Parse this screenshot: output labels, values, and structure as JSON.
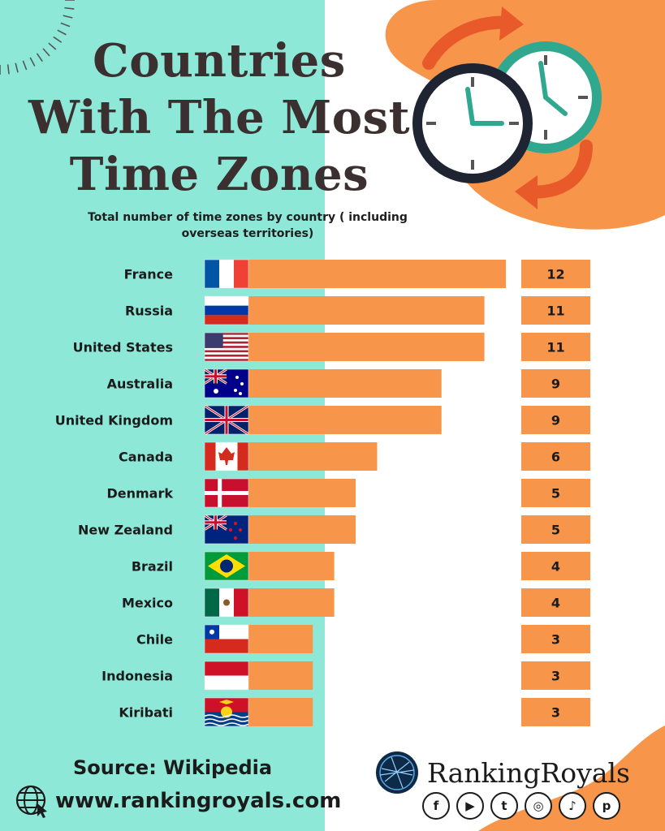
{
  "title_lines": [
    "Countries",
    "With The Most",
    "Time Zones"
  ],
  "subtitle": "Total number of time zones by country ( including overseas territories)",
  "chart_data": {
    "type": "bar",
    "orientation": "horizontal",
    "categories": [
      "France",
      "Russia",
      "United States",
      "Australia",
      "United Kingdom",
      "Canada",
      "Denmark",
      "New Zealand",
      "Brazil",
      "Mexico",
      "Chile",
      "Indonesia",
      "Kiribati"
    ],
    "values": [
      12,
      11,
      11,
      9,
      9,
      6,
      5,
      5,
      4,
      4,
      3,
      3,
      3
    ],
    "value_labels": [
      "12",
      "11",
      "11",
      "9",
      "9",
      "6",
      "5",
      "5",
      "4",
      "4",
      "3",
      "3",
      "3"
    ],
    "flag_icons": [
      "france-flag",
      "russia-flag",
      "united-states-flag",
      "australia-flag",
      "united-kingdom-flag",
      "canada-flag",
      "denmark-flag",
      "new-zealand-flag",
      "brazil-flag",
      "mexico-flag",
      "chile-flag",
      "indonesia-flag",
      "kiribati-flag"
    ],
    "xlim": [
      0,
      12
    ],
    "bar_color": "#f7954a",
    "grid": false,
    "legend": false
  },
  "footer": {
    "source": "Source: Wikipedia",
    "website": "www.rankingroyals.com",
    "brand": "RankingRoyals",
    "social_icons": [
      "facebook-icon",
      "youtube-icon",
      "twitter-icon",
      "instagram-icon",
      "tiktok-icon",
      "pinterest-icon"
    ],
    "social_glyphs": [
      "f",
      "▶",
      "t",
      "◎",
      "♪",
      "p"
    ]
  },
  "colors": {
    "left_background": "#8de8d8",
    "accent_orange": "#f7954a",
    "title_text": "#3b2f2f",
    "clock_teal": "#2fa88f",
    "arrow_red": "#e85a2a"
  }
}
